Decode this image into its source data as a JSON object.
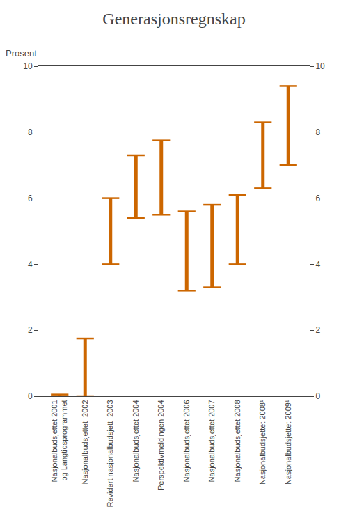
{
  "chart_data": {
    "type": "range",
    "title": "Generasjonsregnskap",
    "ylabel": "Prosent",
    "categories": [
      "Nasjonalbudsjettet 2001\nog Langtidsprogrammet",
      "Nasjonalbudsjettet  2002",
      "Revidert nasjonalbudsjett  2003",
      "Nasjonalbudsjettet 2004",
      "Perspektivmeldingen 2004",
      "Nasjonalbudsjettet 2006",
      "Nasjonalbudsjettet 2007",
      "Nasjonalbudsjettet 2008",
      "Nasjonalbudsjettet 2008¹",
      "Nasjonalbudsjettet 2009¹"
    ],
    "low": [
      0.0,
      0.0,
      4.0,
      5.4,
      5.5,
      3.2,
      3.3,
      4.0,
      6.3,
      7.0
    ],
    "high": [
      0.05,
      1.75,
      6.0,
      7.3,
      7.75,
      5.6,
      5.8,
      6.1,
      8.3,
      9.4
    ],
    "color": "#CC6600",
    "ylim": [
      0,
      10
    ],
    "yticks": [
      0,
      2,
      4,
      6,
      8,
      10
    ],
    "y2lim": [
      0,
      10
    ],
    "y2ticks": [
      0,
      2,
      4,
      6,
      8,
      10
    ],
    "grid": false
  }
}
